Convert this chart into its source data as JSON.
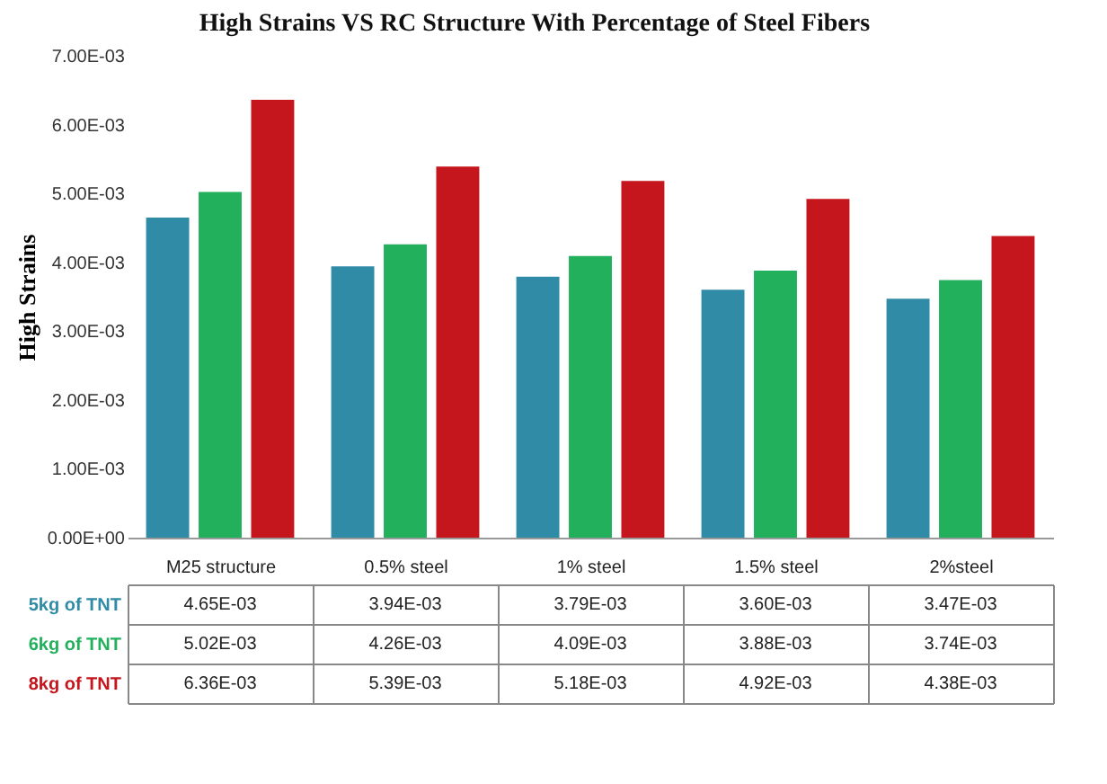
{
  "chart_data": {
    "type": "bar",
    "title": "High Strains VS RC Structure With Percentage of Steel Fibers",
    "ylabel": "High Strains",
    "categories": [
      "M25 structure",
      "0.5% steel",
      "1% steel",
      "1.5% steel",
      "2%steel"
    ],
    "series": [
      {
        "name": "5kg of TNT",
        "color": "#2f8ba6",
        "values": [
          0.00465,
          0.00394,
          0.00379,
          0.0036,
          0.00347
        ],
        "value_labels": [
          "4.65E-03",
          "3.94E-03",
          "3.79E-03",
          "3.60E-03",
          "3.47E-03"
        ]
      },
      {
        "name": "6kg of TNT",
        "color": "#22b05c",
        "values": [
          0.00502,
          0.00426,
          0.00409,
          0.00388,
          0.00374
        ],
        "value_labels": [
          "5.02E-03",
          "4.26E-03",
          "4.09E-03",
          "3.88E-03",
          "3.74E-03"
        ]
      },
      {
        "name": "8kg of TNT",
        "color": "#c4161c",
        "values": [
          0.00636,
          0.00539,
          0.00518,
          0.00492,
          0.00438
        ],
        "value_labels": [
          "6.36E-03",
          "5.39E-03",
          "5.18E-03",
          "4.92E-03",
          "4.38E-03"
        ]
      }
    ],
    "ylim": [
      0,
      0.007
    ],
    "yticks": [
      {
        "value": 0,
        "label": "0.00E+00"
      },
      {
        "value": 0.001,
        "label": "1.00E-03"
      },
      {
        "value": 0.002,
        "label": "2.00E-03"
      },
      {
        "value": 0.003,
        "label": "3.00E-03"
      },
      {
        "value": 0.004,
        "label": "4.00E-03"
      },
      {
        "value": 0.005,
        "label": "5.00E-03"
      },
      {
        "value": 0.006,
        "label": "6.00E-03"
      },
      {
        "value": 0.007,
        "label": "7.00E-03"
      }
    ],
    "legend": "bottom",
    "grid": false
  }
}
